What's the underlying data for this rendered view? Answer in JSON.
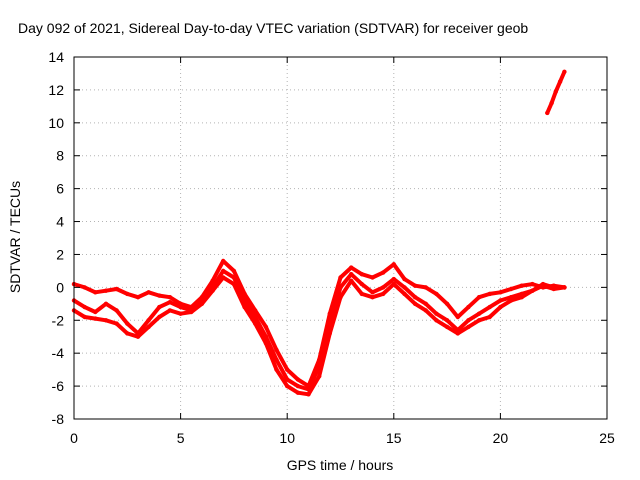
{
  "chart_data": {
    "type": "scatter",
    "title": "Day 092 of 2021, Sidereal Day-to-day VTEC variation (SDTVAR) for receiver geob",
    "xlabel": "GPS time / hours",
    "ylabel": "SDTVAR / TECUs",
    "xlim": [
      0,
      25
    ],
    "ylim": [
      -8,
      14
    ],
    "x_ticks": [
      0,
      5,
      10,
      15,
      20,
      25
    ],
    "y_ticks": [
      -8,
      -6,
      -4,
      -2,
      0,
      2,
      4,
      6,
      8,
      10,
      12,
      14
    ],
    "x_tick_labels": [
      "0",
      "5",
      "10",
      "15",
      "20",
      "25"
    ],
    "y_tick_labels": [
      "-8",
      "-6",
      "-4",
      "-2",
      "0",
      "2",
      "4",
      "6",
      "8",
      "10",
      "12",
      "14"
    ],
    "grid": true,
    "grid_style": "dotted",
    "color": "#ff0000",
    "series": [
      {
        "name": "track-1",
        "x": [
          0.0,
          0.5,
          1.0,
          1.5,
          2.0,
          2.5,
          3.0,
          3.5,
          4.0,
          4.5,
          5.0,
          5.5,
          6.0,
          6.5,
          7.0,
          7.5,
          8.0,
          8.5,
          9.0,
          9.5,
          10.0,
          10.5,
          11.0,
          11.5,
          12.0,
          12.5,
          13.0,
          13.5,
          14.0,
          14.5,
          15.0,
          15.5,
          16.0,
          16.5,
          17.0,
          17.5,
          18.0,
          18.5,
          19.0,
          19.5,
          20.0,
          20.5,
          21.0,
          21.5,
          22.0,
          22.5,
          23.0
        ],
        "y": [
          0.2,
          0.0,
          -0.3,
          -0.2,
          -0.1,
          -0.4,
          -0.6,
          -0.3,
          -0.5,
          -0.6,
          -1.0,
          -1.2,
          -0.6,
          0.4,
          1.6,
          1.0,
          -0.4,
          -1.4,
          -2.4,
          -3.8,
          -5.0,
          -5.6,
          -6.0,
          -4.4,
          -1.6,
          0.6,
          1.2,
          0.8,
          0.6,
          0.9,
          1.4,
          0.5,
          0.1,
          0.0,
          -0.4,
          -1.0,
          -1.8,
          -1.2,
          -0.6,
          -0.4,
          -0.3,
          -0.1,
          0.1,
          0.2,
          0.0,
          0.1,
          0.0
        ]
      },
      {
        "name": "track-2",
        "x": [
          0.0,
          0.5,
          1.0,
          1.5,
          2.0,
          2.5,
          3.0,
          3.5,
          4.0,
          4.5,
          5.0,
          5.5,
          6.0,
          6.5,
          7.0,
          7.5,
          8.0,
          8.5,
          9.0,
          9.5,
          10.0,
          10.5,
          11.0,
          11.5,
          12.0,
          12.5,
          13.0,
          13.5,
          14.0,
          14.5,
          15.0,
          15.5,
          16.0,
          16.5,
          17.0,
          17.5,
          18.0,
          18.5,
          19.0,
          19.5,
          20.0,
          20.5,
          21.0,
          21.5,
          22.0,
          22.5,
          23.0
        ],
        "y": [
          -0.8,
          -1.2,
          -1.5,
          -1.0,
          -1.4,
          -2.2,
          -2.8,
          -2.0,
          -1.2,
          -0.9,
          -1.2,
          -1.4,
          -0.8,
          0.0,
          1.0,
          0.6,
          -0.8,
          -1.8,
          -3.0,
          -4.4,
          -5.6,
          -6.0,
          -6.2,
          -4.8,
          -2.2,
          0.0,
          0.8,
          0.2,
          -0.3,
          0.0,
          0.5,
          0.0,
          -0.6,
          -1.0,
          -1.6,
          -2.0,
          -2.6,
          -2.0,
          -1.6,
          -1.2,
          -0.8,
          -0.6,
          -0.4,
          -0.2,
          0.1,
          -0.1,
          0.0
        ]
      },
      {
        "name": "track-3",
        "x": [
          0.0,
          0.5,
          1.0,
          1.5,
          2.0,
          2.5,
          3.0,
          3.5,
          4.0,
          4.5,
          5.0,
          5.5,
          6.0,
          6.5,
          7.0,
          7.5,
          8.0,
          8.5,
          9.0,
          9.5,
          10.0,
          10.5,
          11.0,
          11.5,
          12.0,
          12.5,
          13.0,
          13.5,
          14.0,
          14.5,
          15.0,
          15.5,
          16.0,
          16.5,
          17.0,
          17.5,
          18.0,
          18.5,
          19.0,
          19.5,
          20.0,
          20.5,
          21.0,
          21.5,
          22.0,
          22.5,
          23.0
        ],
        "y": [
          -1.4,
          -1.8,
          -1.9,
          -2.0,
          -2.2,
          -2.8,
          -3.0,
          -2.4,
          -1.8,
          -1.4,
          -1.6,
          -1.5,
          -1.0,
          -0.2,
          0.6,
          0.2,
          -1.2,
          -2.2,
          -3.4,
          -5.0,
          -6.0,
          -6.4,
          -6.5,
          -5.4,
          -2.8,
          -0.6,
          0.4,
          -0.4,
          -0.6,
          -0.4,
          0.2,
          -0.4,
          -1.0,
          -1.4,
          -2.0,
          -2.4,
          -2.8,
          -2.4,
          -2.0,
          -1.8,
          -1.2,
          -0.8,
          -0.6,
          -0.2,
          0.2,
          0.0,
          0.0
        ]
      },
      {
        "name": "track-4",
        "x": [
          22.2,
          22.4,
          22.6,
          22.8,
          23.0
        ],
        "y": [
          10.6,
          11.2,
          11.9,
          12.5,
          13.1
        ]
      }
    ]
  }
}
